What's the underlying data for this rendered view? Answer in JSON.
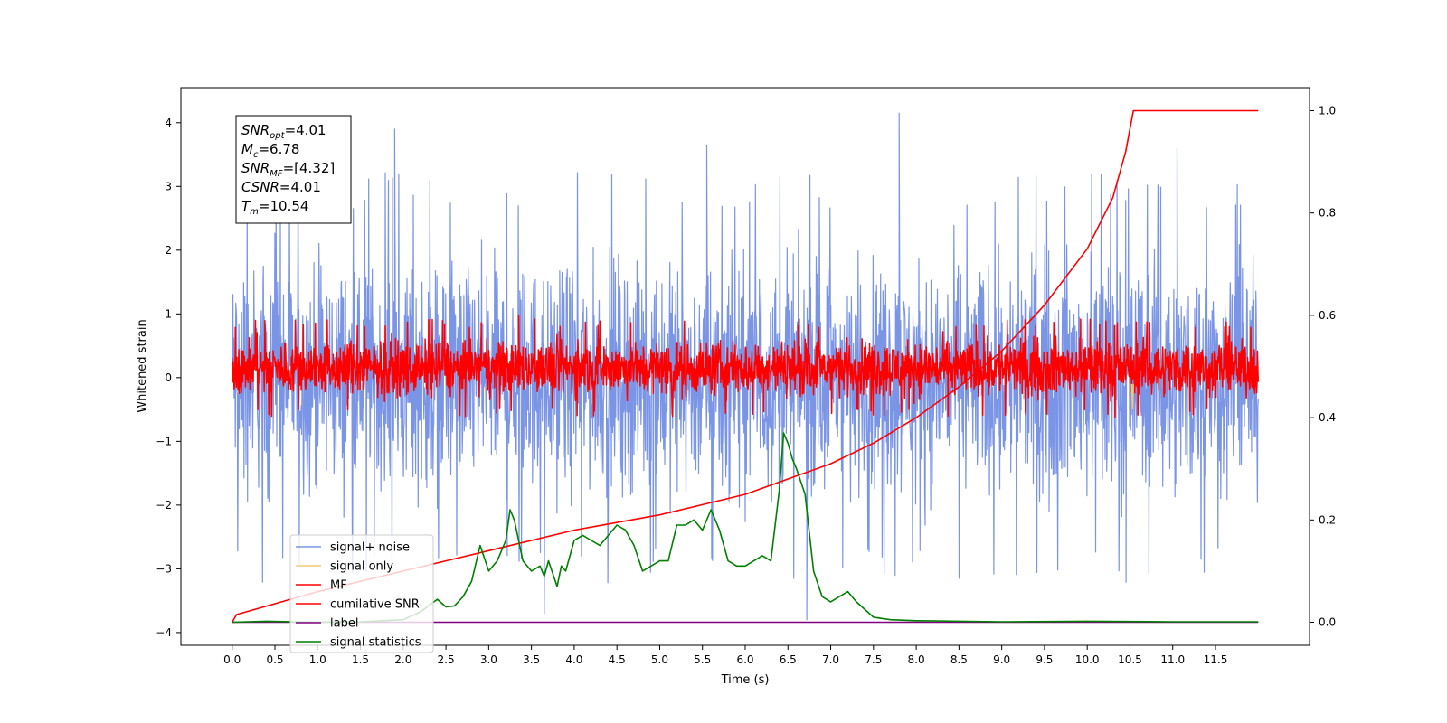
{
  "chart_data": {
    "type": "line",
    "xlabel": "Time (s)",
    "ylabel": "Whitened strain",
    "xlim": [
      -0.6,
      12.6
    ],
    "ylim": [
      -4.2,
      4.55
    ],
    "y2lim": [
      -0.045,
      1.045
    ],
    "x_ticks": [
      0.0,
      0.5,
      1.0,
      1.5,
      2.0,
      2.5,
      3.0,
      3.5,
      4.0,
      4.5,
      5.0,
      5.5,
      6.0,
      6.5,
      7.0,
      7.5,
      8.0,
      8.5,
      9.0,
      9.5,
      10.0,
      10.5,
      11.0,
      11.5
    ],
    "y_ticks": [
      -4,
      -3,
      -2,
      -1,
      0,
      1,
      2,
      3,
      4
    ],
    "y2_ticks": [
      0.0,
      0.2,
      0.4,
      0.6,
      0.8,
      1.0
    ],
    "annotation": {
      "lines": [
        {
          "sym": "SNR",
          "sub": "opt",
          "val": "=4.01"
        },
        {
          "sym": "M",
          "sub": "c",
          "val": "=6.78"
        },
        {
          "sym": "SNR",
          "sub": "MF",
          "val": "=[4.32]"
        },
        {
          "sym": "CSNR",
          "sub": "",
          "val": "=4.01"
        },
        {
          "sym": "T",
          "sub": "m",
          "val": "=10.54"
        }
      ]
    },
    "legend": {
      "placement": "lower-left",
      "entries": [
        {
          "label": "signal+ noise",
          "color": "#7b95e6"
        },
        {
          "label": "signal only",
          "color": "#f5c67a"
        },
        {
          "label": "MF",
          "color": "#ff0000"
        },
        {
          "label": "cumilative SNR",
          "color": "#ff0000"
        },
        {
          "label": "label",
          "color": "#800080"
        },
        {
          "label": "signal statistics",
          "color": "#008000"
        }
      ]
    },
    "series": [
      {
        "name": "signal+ noise",
        "axis": "left",
        "color": "#7b95e6",
        "kind": "noise",
        "x_range": [
          0.0,
          12.0
        ],
        "envelope": [
          -2.3,
          2.3
        ],
        "peaks": [
          [
            1.9,
            3.9
          ],
          [
            7.8,
            4.15
          ],
          [
            5.55,
            3.65
          ],
          [
            11.05,
            3.6
          ],
          [
            6.72,
            -3.8
          ],
          [
            3.65,
            -3.7
          ]
        ]
      },
      {
        "name": "MF",
        "axis": "left",
        "color": "#ff0000",
        "kind": "noise",
        "x_range": [
          0.0,
          12.0
        ],
        "envelope": [
          -0.4,
          0.7
        ],
        "peaks": [
          [
            3.35,
            0.98
          ],
          [
            8.7,
            0.82
          ]
        ]
      },
      {
        "name": "signal only",
        "axis": "left",
        "color": "#f5c67a",
        "kind": "points",
        "x": [
          10.52,
          10.53,
          10.54
        ],
        "y": [
          -0.1,
          -0.5,
          -0.1
        ]
      },
      {
        "name": "cumilative SNR",
        "axis": "right",
        "color": "#ff0000",
        "kind": "line",
        "x": [
          0.0,
          0.05,
          1.0,
          2.0,
          3.0,
          4.0,
          5.0,
          6.0,
          6.5,
          7.0,
          7.5,
          8.0,
          8.5,
          9.0,
          9.5,
          10.0,
          10.3,
          10.45,
          10.54,
          12.0
        ],
        "y": [
          0.0,
          0.015,
          0.06,
          0.1,
          0.14,
          0.18,
          0.21,
          0.25,
          0.28,
          0.31,
          0.35,
          0.4,
          0.46,
          0.53,
          0.62,
          0.73,
          0.83,
          0.92,
          1.0,
          1.0
        ]
      },
      {
        "name": "label",
        "axis": "right",
        "color": "#800080",
        "kind": "line",
        "x": [
          0.0,
          12.0
        ],
        "y": [
          0.0,
          0.0
        ]
      },
      {
        "name": "signal statistics",
        "axis": "right",
        "color": "#008000",
        "kind": "line",
        "x": [
          0.0,
          0.4,
          1.0,
          1.5,
          2.0,
          2.2,
          2.4,
          2.5,
          2.6,
          2.7,
          2.8,
          2.9,
          3.0,
          3.1,
          3.2,
          3.25,
          3.3,
          3.4,
          3.5,
          3.6,
          3.65,
          3.7,
          3.8,
          3.85,
          3.9,
          4.0,
          4.1,
          4.2,
          4.3,
          4.4,
          4.5,
          4.6,
          4.7,
          4.8,
          4.9,
          5.0,
          5.1,
          5.2,
          5.3,
          5.4,
          5.5,
          5.6,
          5.7,
          5.8,
          5.9,
          6.0,
          6.1,
          6.2,
          6.3,
          6.4,
          6.45,
          6.5,
          6.55,
          6.6,
          6.7,
          6.8,
          6.9,
          7.0,
          7.1,
          7.2,
          7.3,
          7.5,
          7.7,
          8.0,
          9.0,
          10.0,
          11.0,
          12.0
        ],
        "y": [
          0.0,
          0.002,
          0.0,
          0.001,
          0.005,
          0.02,
          0.045,
          0.03,
          0.032,
          0.05,
          0.08,
          0.15,
          0.1,
          0.12,
          0.16,
          0.22,
          0.2,
          0.12,
          0.1,
          0.11,
          0.09,
          0.12,
          0.07,
          0.11,
          0.1,
          0.16,
          0.17,
          0.16,
          0.15,
          0.17,
          0.19,
          0.18,
          0.15,
          0.1,
          0.11,
          0.12,
          0.12,
          0.19,
          0.19,
          0.2,
          0.18,
          0.22,
          0.18,
          0.12,
          0.11,
          0.11,
          0.12,
          0.13,
          0.12,
          0.26,
          0.37,
          0.35,
          0.32,
          0.3,
          0.25,
          0.1,
          0.05,
          0.04,
          0.05,
          0.06,
          0.04,
          0.01,
          0.005,
          0.003,
          0.001,
          0.002,
          0.001,
          0.001
        ]
      }
    ]
  }
}
